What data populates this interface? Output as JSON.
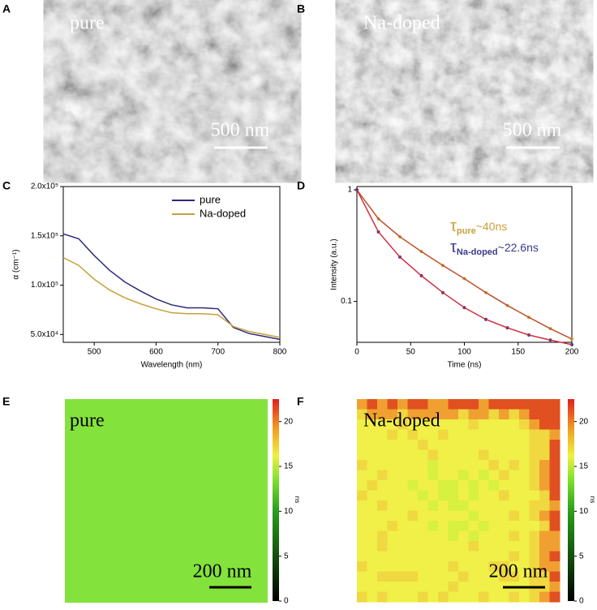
{
  "panels": {
    "A": {
      "label": "A",
      "text": "pure",
      "scale": "500 nm"
    },
    "B": {
      "label": "B",
      "text": "Na-doped",
      "scale": "500 nm"
    },
    "E": {
      "label": "E",
      "text": "pure",
      "scale": "200 nm"
    },
    "F": {
      "label": "F",
      "text": "Na-doped",
      "scale": "200 nm"
    }
  },
  "colorbar": {
    "lim": [
      0,
      22.5
    ],
    "ticks": [
      0,
      5,
      10,
      15,
      20
    ],
    "label": "ns"
  },
  "chart_data": [
    {
      "type": "line",
      "panel_label": "C",
      "xlabel": "Wavelength (nm)",
      "ylabel": "α (cm⁻¹)",
      "x": [
        450,
        475,
        500,
        525,
        550,
        575,
        600,
        625,
        650,
        675,
        700,
        725,
        750,
        775,
        800
      ],
      "series": [
        {
          "name": "pure",
          "color": "#2b2a7c",
          "values": [
            152000,
            147000,
            130000,
            115000,
            103000,
            94000,
            86000,
            80000,
            77000,
            77000,
            76000,
            57000,
            51000,
            48000,
            45000
          ]
        },
        {
          "name": "Na-doped",
          "color": "#c8a03a",
          "values": [
            128000,
            120000,
            106000,
            95000,
            87000,
            81000,
            76000,
            72000,
            71000,
            71000,
            70000,
            58000,
            53000,
            50000,
            47000
          ]
        }
      ],
      "xlim": [
        450,
        800
      ],
      "xticks": [
        500,
        600,
        700,
        800
      ],
      "ylim": [
        42000,
        200000
      ],
      "yticks": [
        {
          "value": 50000,
          "label": "5.0x10⁴"
        },
        {
          "value": 100000,
          "label": "1.0x10⁵"
        },
        {
          "value": 150000,
          "label": "1.5x10⁵"
        },
        {
          "value": 200000,
          "label": "2.0x10⁵"
        }
      ],
      "legend": "upper right"
    },
    {
      "type": "line",
      "panel_label": "D",
      "xlabel": "Time (ns)",
      "ylabel": "Intensity (a.u.)",
      "yscale": "log",
      "x": [
        0,
        20,
        40,
        60,
        80,
        100,
        120,
        140,
        160,
        180,
        200
      ],
      "series": [
        {
          "name": "pure",
          "color": "#c8a03a",
          "fit_color": "#c0502a",
          "values": [
            1,
            0.55,
            0.38,
            0.28,
            0.21,
            0.16,
            0.12,
            0.092,
            0.072,
            0.057,
            0.046
          ]
        },
        {
          "name": "Na-doped",
          "color": "#3a3a90",
          "fit_color": "#d03040",
          "values": [
            1,
            0.42,
            0.25,
            0.17,
            0.12,
            0.088,
            0.069,
            0.058,
            0.05,
            0.045,
            0.041
          ]
        }
      ],
      "xlim": [
        0,
        200
      ],
      "xticks": [
        0,
        50,
        100,
        150,
        200
      ],
      "ylim": [
        0.043,
        1.07
      ],
      "yticks": [
        0.1,
        1
      ],
      "annotations": [
        {
          "symbol": "τ",
          "sub": "pure",
          "text": "~40ns",
          "color": "#c8a03a"
        },
        {
          "symbol": "τ",
          "sub": "Na-doped",
          "text": "~22.6ns",
          "color": "#3a3a90"
        }
      ]
    }
  ]
}
